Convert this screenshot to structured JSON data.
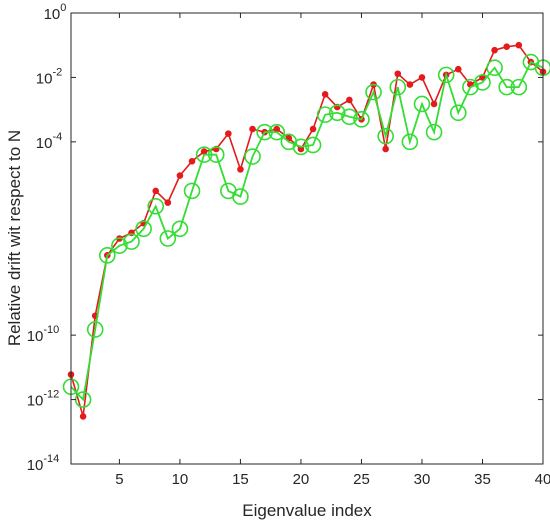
{
  "chart_data": {
    "type": "line",
    "title": "",
    "xlabel": "Eigenvalue index",
    "ylabel": "Relative drift wit respect to N",
    "xlim": [
      1,
      40
    ],
    "ylim": [
      1e-14,
      1
    ],
    "yscale": "log",
    "grid": false,
    "legend": "none",
    "x_ticks": [
      5,
      10,
      15,
      20,
      25,
      30,
      35,
      40
    ],
    "x_tick_labels": [
      "5",
      "10",
      "15",
      "20",
      "25",
      "30",
      "35",
      "40"
    ],
    "y_ticks": [
      {
        "base": "10",
        "exp": "-14",
        "value": 1e-14
      },
      {
        "base": "10",
        "exp": "-12",
        "value": 1e-12
      },
      {
        "base": "10",
        "exp": "-10",
        "value": 1e-10
      },
      {
        "base": "10",
        "exp": "-4",
        "value": 0.0001
      },
      {
        "base": "10",
        "exp": "-2",
        "value": 0.01
      },
      {
        "base": "10",
        "exp": "0",
        "value": 1
      }
    ],
    "x": [
      1,
      2,
      3,
      4,
      5,
      6,
      7,
      8,
      9,
      10,
      11,
      12,
      13,
      14,
      15,
      16,
      17,
      18,
      19,
      20,
      21,
      22,
      23,
      24,
      25,
      26,
      27,
      28,
      29,
      30,
      31,
      32,
      33,
      34,
      35,
      36,
      37,
      38,
      39,
      40
    ],
    "series": [
      {
        "color": "#e41a1c",
        "marker": "dot",
        "values": [
          6e-12,
          3e-13,
          4e-10,
          3e-08,
          1e-07,
          1.5e-07,
          3e-07,
          3e-06,
          1.3e-06,
          9e-06,
          2.5e-05,
          5e-05,
          6e-05,
          0.00018,
          1.4e-05,
          0.00025,
          0.0002,
          0.00025,
          0.00013,
          6e-05,
          0.00025,
          0.003,
          0.0012,
          0.002,
          0.0005,
          0.006,
          6e-05,
          0.013,
          0.006,
          0.01,
          0.0015,
          0.012,
          0.018,
          0.006,
          0.01,
          0.07,
          0.09,
          0.1,
          0.03,
          0.015
        ]
      },
      {
        "color": "#33dd33",
        "marker": "open-circle",
        "values": [
          2.5e-12,
          1e-12,
          1.5e-10,
          3e-08,
          6e-08,
          8e-08,
          2e-07,
          1e-06,
          1e-07,
          2e-07,
          3e-06,
          4e-05,
          4e-05,
          3e-06,
          2e-06,
          3.5e-05,
          0.0002,
          0.0002,
          0.0001,
          7e-05,
          8e-05,
          0.0007,
          0.0008,
          0.0006,
          0.0005,
          0.0035,
          0.00015,
          0.005,
          0.0001,
          0.0015,
          0.0002,
          0.012,
          0.0008,
          0.005,
          0.007,
          0.02,
          0.005,
          0.005,
          0.03,
          0.02
        ]
      }
    ]
  }
}
